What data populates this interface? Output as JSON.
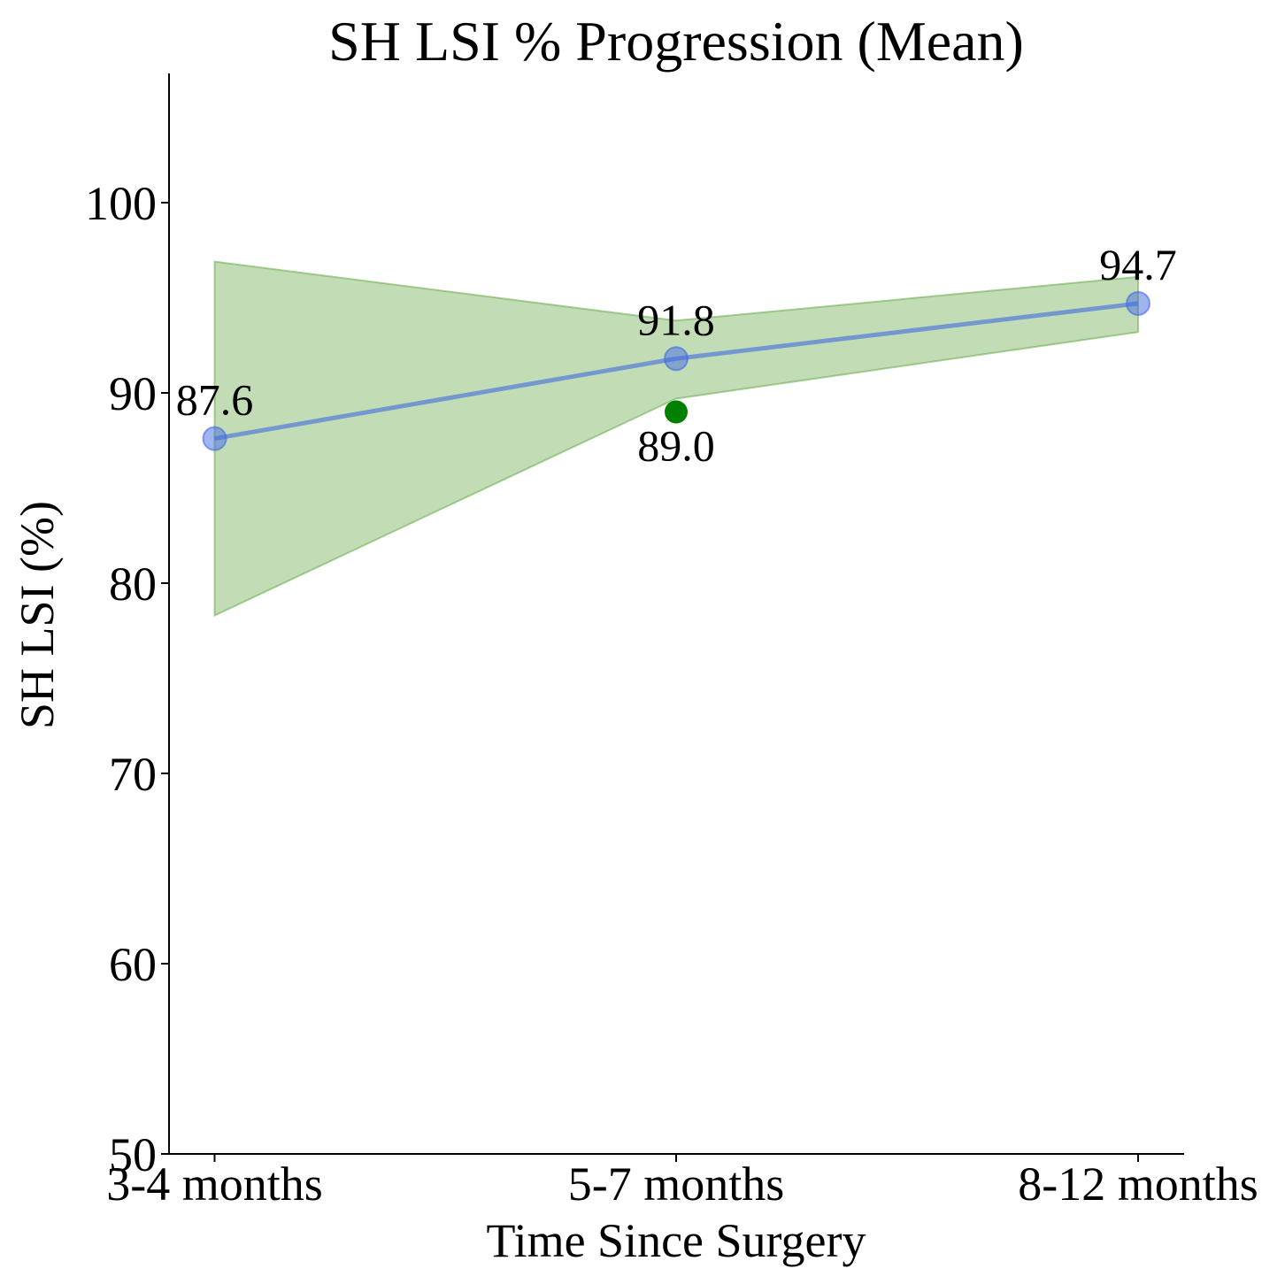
{
  "chart_data": {
    "type": "line",
    "title": "SH LSI % Progression (Mean)",
    "xlabel": "Time Since Surgery",
    "ylabel": "SH LSI (%)",
    "categories": [
      "3-4 months",
      "5-7 months",
      "8-12 months"
    ],
    "ylim": [
      50,
      107
    ],
    "yticks": [
      50,
      60,
      70,
      80,
      90,
      100
    ],
    "grid": false,
    "series": [
      {
        "values": [
          87.6,
          91.8,
          94.7
        ],
        "labels": [
          "87.6",
          "91.8",
          "94.7"
        ],
        "color": "#4169e1"
      }
    ],
    "band": {
      "lower": [
        78.3,
        89.7,
        93.2
      ],
      "upper": [
        96.9,
        93.8,
        96.1
      ],
      "color": "#5aa33a"
    },
    "extra_points": [
      {
        "category": "5-7 months",
        "value": 89.0,
        "label": "89.0",
        "color": "#008000"
      }
    ]
  }
}
